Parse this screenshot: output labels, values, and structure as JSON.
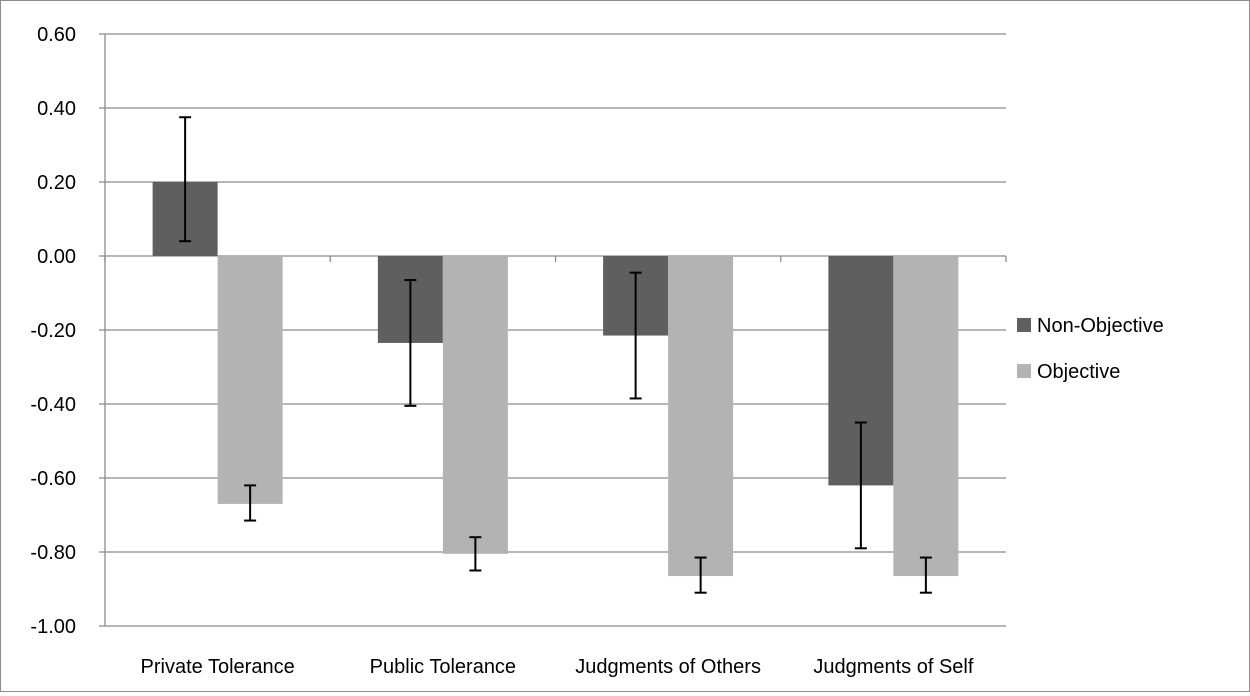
{
  "chart_data": {
    "type": "bar",
    "title": "",
    "xlabel": "",
    "ylabel": "",
    "categories": [
      "Private Tolerance",
      "Public Tolerance",
      "Judgments of Others",
      "Judgments of Self"
    ],
    "series": [
      {
        "name": "Non-Objective",
        "color": "#5f5f5f",
        "values": [
          0.2,
          -0.235,
          -0.215,
          -0.62
        ],
        "error_upper": [
          0.375,
          -0.065,
          -0.045,
          -0.45
        ],
        "error_lower": [
          0.04,
          -0.405,
          -0.385,
          -0.79
        ]
      },
      {
        "name": "Objective",
        "color": "#b3b3b3",
        "values": [
          -0.67,
          -0.805,
          -0.865,
          -0.865
        ],
        "error_upper": [
          -0.62,
          -0.76,
          -0.815,
          -0.815
        ],
        "error_lower": [
          -0.715,
          -0.85,
          -0.91,
          -0.91
        ]
      }
    ],
    "ylim": [
      -1.0,
      0.6
    ],
    "y_ticks": [
      "0.60",
      "0.40",
      "0.20",
      "0.00",
      "-0.20",
      "-0.40",
      "-0.60",
      "-0.80",
      "-1.00"
    ],
    "grid": true,
    "legend_position": "right"
  }
}
